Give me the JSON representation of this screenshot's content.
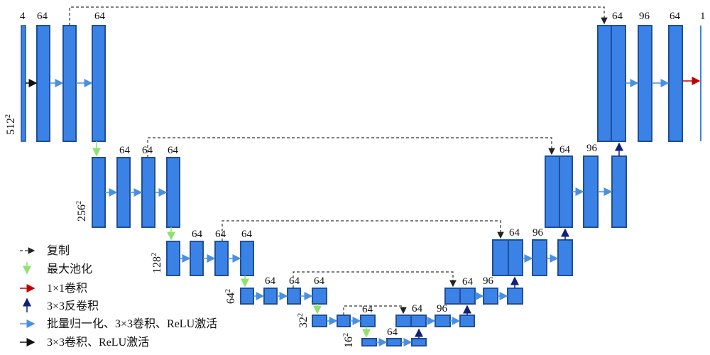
{
  "resolutions": [
    {
      "base": "512",
      "exp": "2"
    },
    {
      "base": "256",
      "exp": "2"
    },
    {
      "base": "128",
      "exp": "2"
    },
    {
      "base": "64",
      "exp": "2"
    },
    {
      "base": "32",
      "exp": "2"
    },
    {
      "base": "16",
      "exp": "2"
    }
  ],
  "channels": {
    "input": "4",
    "enc1_a": "64",
    "enc1_b": "64",
    "enc2_a": "64",
    "enc2_b": "64",
    "enc2_c": "64",
    "enc3_a": "64",
    "enc3_b": "64",
    "enc3_c": "64",
    "enc4_a": "64",
    "enc4_b": "64",
    "enc4_c": "64",
    "enc5_a": "64",
    "bott": "64",
    "dec5_cat": "64",
    "dec5_96": "96",
    "dec4_cat": "64",
    "dec4_96": "96",
    "dec3_cat": "64",
    "dec3_96": "96",
    "dec2_cat": "64",
    "dec2_96": "96",
    "dec1_cat": "64",
    "dec1_96": "96",
    "dec1_out": "64",
    "output": "1"
  },
  "legend": [
    {
      "label": "复制",
      "color": "#222222",
      "icon": "dashed-arrow-icon"
    },
    {
      "label": "最大池化",
      "color": "#90e070",
      "icon": "green-down-arrow-icon"
    },
    {
      "label": "1×1卷积",
      "color": "#c00000",
      "icon": "red-arrow-icon"
    },
    {
      "label": "3×3反卷积",
      "color": "#10207a",
      "icon": "navy-up-arrow-icon"
    },
    {
      "label": "批量归一化、3×3卷积、ReLU激活",
      "color": "#4a90e2",
      "icon": "blue-arrow-icon"
    },
    {
      "label": "3×3卷积、ReLU激活",
      "color": "#111111",
      "icon": "black-arrow-icon"
    }
  ],
  "colors": {
    "block": "#3b82e6",
    "block_border": "#1f4f96",
    "skip": "#333333",
    "pool": "#90e070",
    "conv1x1": "#c00000",
    "deconv": "#10207a",
    "bnconv": "#4a90e2",
    "conv": "#111111"
  }
}
